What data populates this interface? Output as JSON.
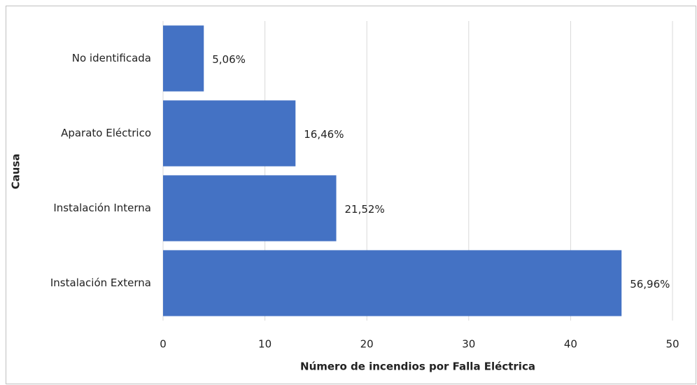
{
  "chart_data": {
    "type": "barh",
    "categories": [
      "No identificada",
      "Aparato Eléctrico",
      "Instalación Interna",
      "Instalación Externa"
    ],
    "values": [
      4,
      13,
      17,
      45
    ],
    "value_labels": [
      "5,06%",
      "16,46%",
      "21,52%",
      "56,96%"
    ],
    "color": "#4472c4",
    "xlabel": "Número de incendios por Falla Eléctrica",
    "ylabel": "Causa",
    "xlim": [
      0,
      50
    ],
    "xticks": [
      0,
      10,
      20,
      30,
      40,
      50
    ],
    "grid": true
  }
}
